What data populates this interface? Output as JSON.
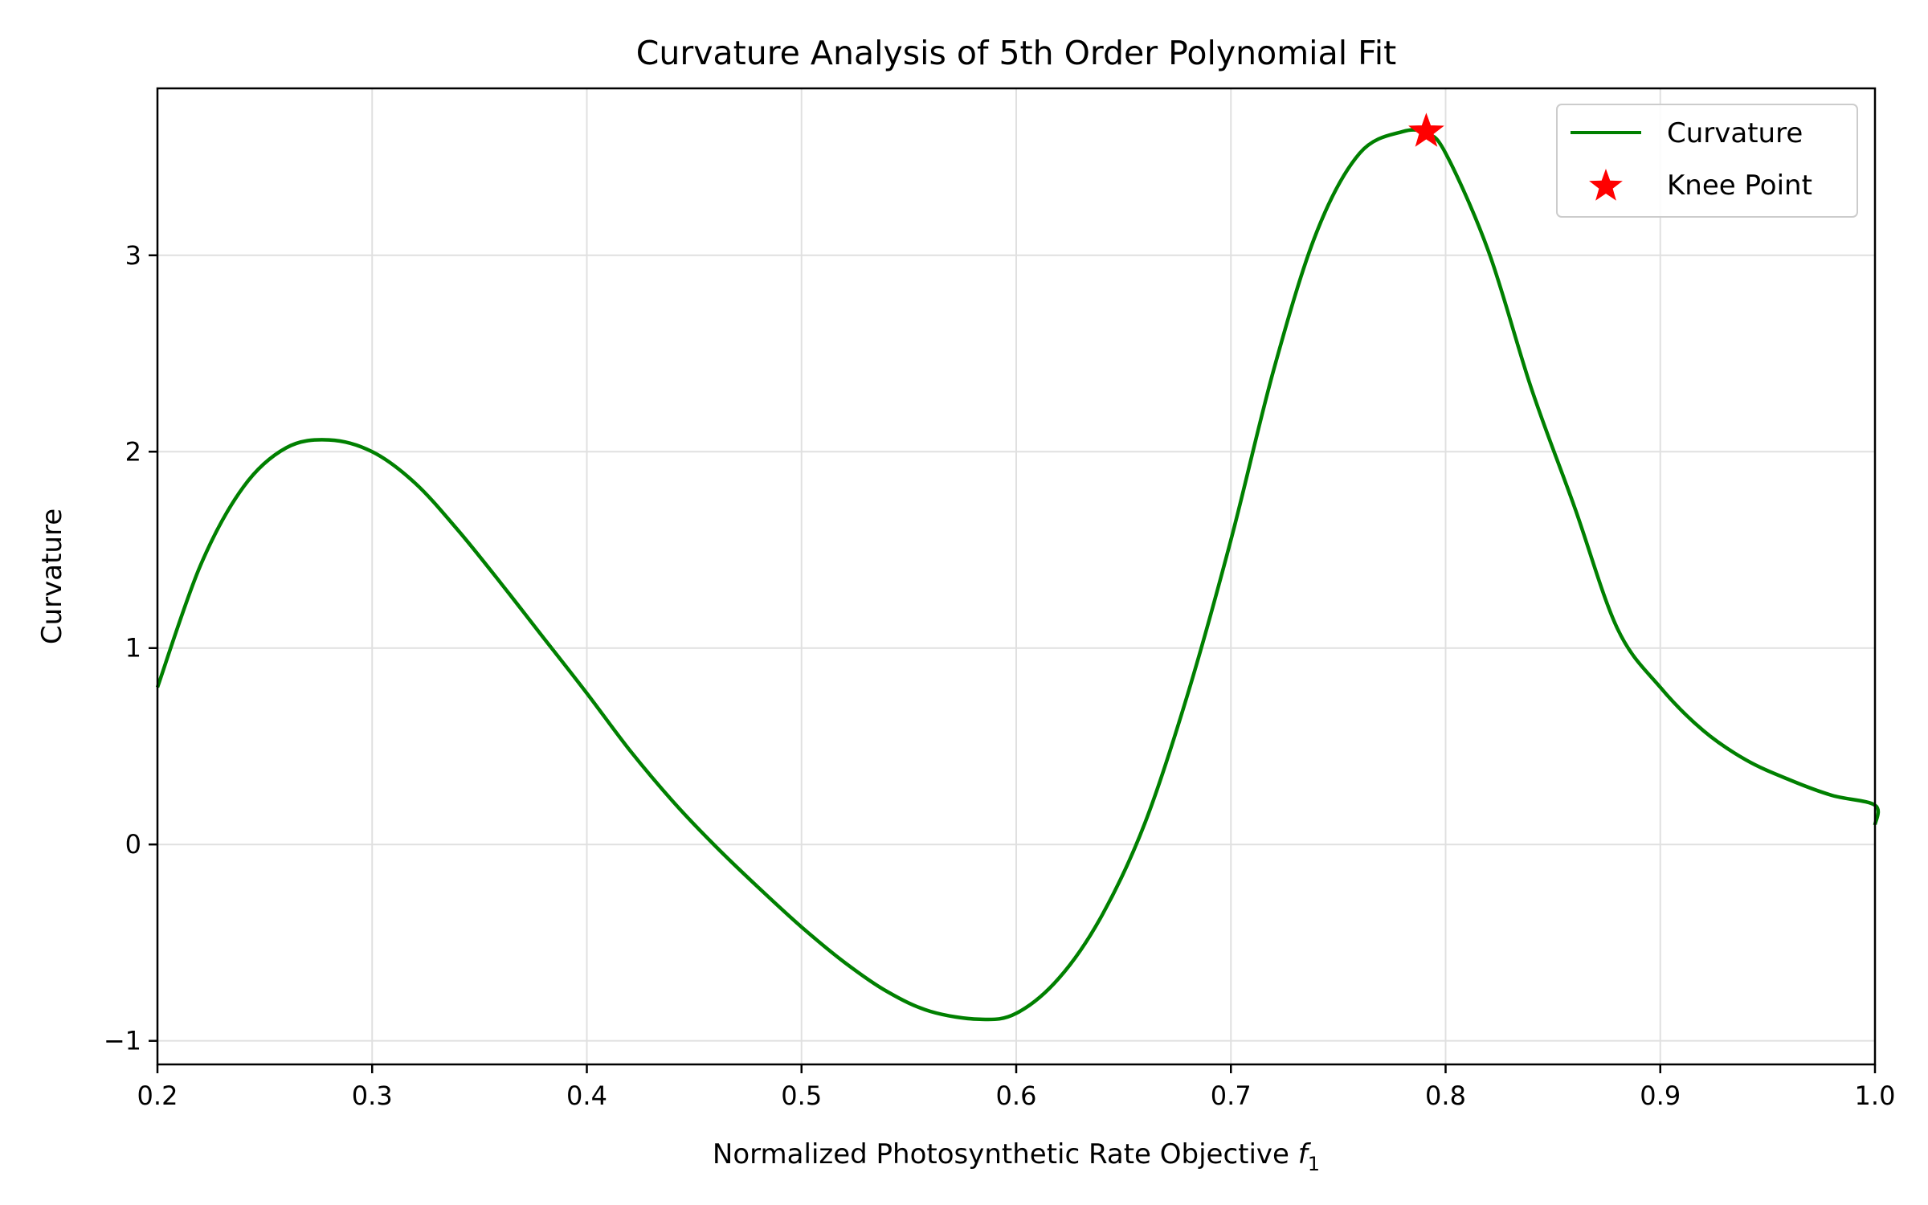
{
  "chart_data": {
    "type": "line",
    "title": "Curvature Analysis of 5th Order Polynomial Fit",
    "xlabel": "Normalized Photosynthetic Rate Objective",
    "xlabel_var": "f",
    "xlabel_sub": "1",
    "ylabel": "Curvature",
    "xlim": [
      0.2,
      1.0
    ],
    "ylim": [
      -1.12,
      3.85
    ],
    "grid": true,
    "legend_position": "top-right",
    "x_ticks": [
      {
        "value": 0.2,
        "label": "0.2"
      },
      {
        "value": 0.3,
        "label": "0.3"
      },
      {
        "value": 0.4,
        "label": "0.4"
      },
      {
        "value": 0.5,
        "label": "0.5"
      },
      {
        "value": 0.6,
        "label": "0.6"
      },
      {
        "value": 0.7,
        "label": "0.7"
      },
      {
        "value": 0.8,
        "label": "0.8"
      },
      {
        "value": 0.9,
        "label": "0.9"
      },
      {
        "value": 1.0,
        "label": "1.0"
      }
    ],
    "y_ticks": [
      {
        "value": -1,
        "label": "−1"
      },
      {
        "value": 0,
        "label": "0"
      },
      {
        "value": 1,
        "label": "1"
      },
      {
        "value": 2,
        "label": "2"
      },
      {
        "value": 3,
        "label": "3"
      }
    ],
    "series": [
      {
        "name": "Curvature",
        "color": "#008000",
        "x": [
          0.2,
          0.22,
          0.24,
          0.26,
          0.28,
          0.3,
          0.32,
          0.34,
          0.36,
          0.38,
          0.4,
          0.42,
          0.44,
          0.46,
          0.48,
          0.5,
          0.52,
          0.54,
          0.56,
          0.583,
          0.6,
          0.62,
          0.64,
          0.66,
          0.68,
          0.7,
          0.72,
          0.74,
          0.76,
          0.78,
          0.791,
          0.8,
          0.82,
          0.84,
          0.86,
          0.88,
          0.9,
          0.92,
          0.94,
          0.96,
          0.98,
          1.0,
          1.0
        ],
        "y": [
          0.8,
          1.42,
          1.82,
          2.02,
          2.06,
          2.0,
          1.84,
          1.6,
          1.33,
          1.05,
          0.77,
          0.48,
          0.22,
          -0.01,
          -0.22,
          -0.42,
          -0.6,
          -0.75,
          -0.85,
          -0.89,
          -0.86,
          -0.68,
          -0.36,
          0.11,
          0.77,
          1.55,
          2.42,
          3.12,
          3.52,
          3.63,
          3.62,
          3.52,
          3.02,
          2.32,
          1.72,
          1.1,
          0.8,
          0.58,
          0.43,
          0.33,
          0.25,
          0.2,
          0.1
        ]
      },
      {
        "name": "Knee Point",
        "color": "#ff0000",
        "marker": "star",
        "x": [
          0.791
        ],
        "y": [
          3.63
        ]
      }
    ]
  }
}
